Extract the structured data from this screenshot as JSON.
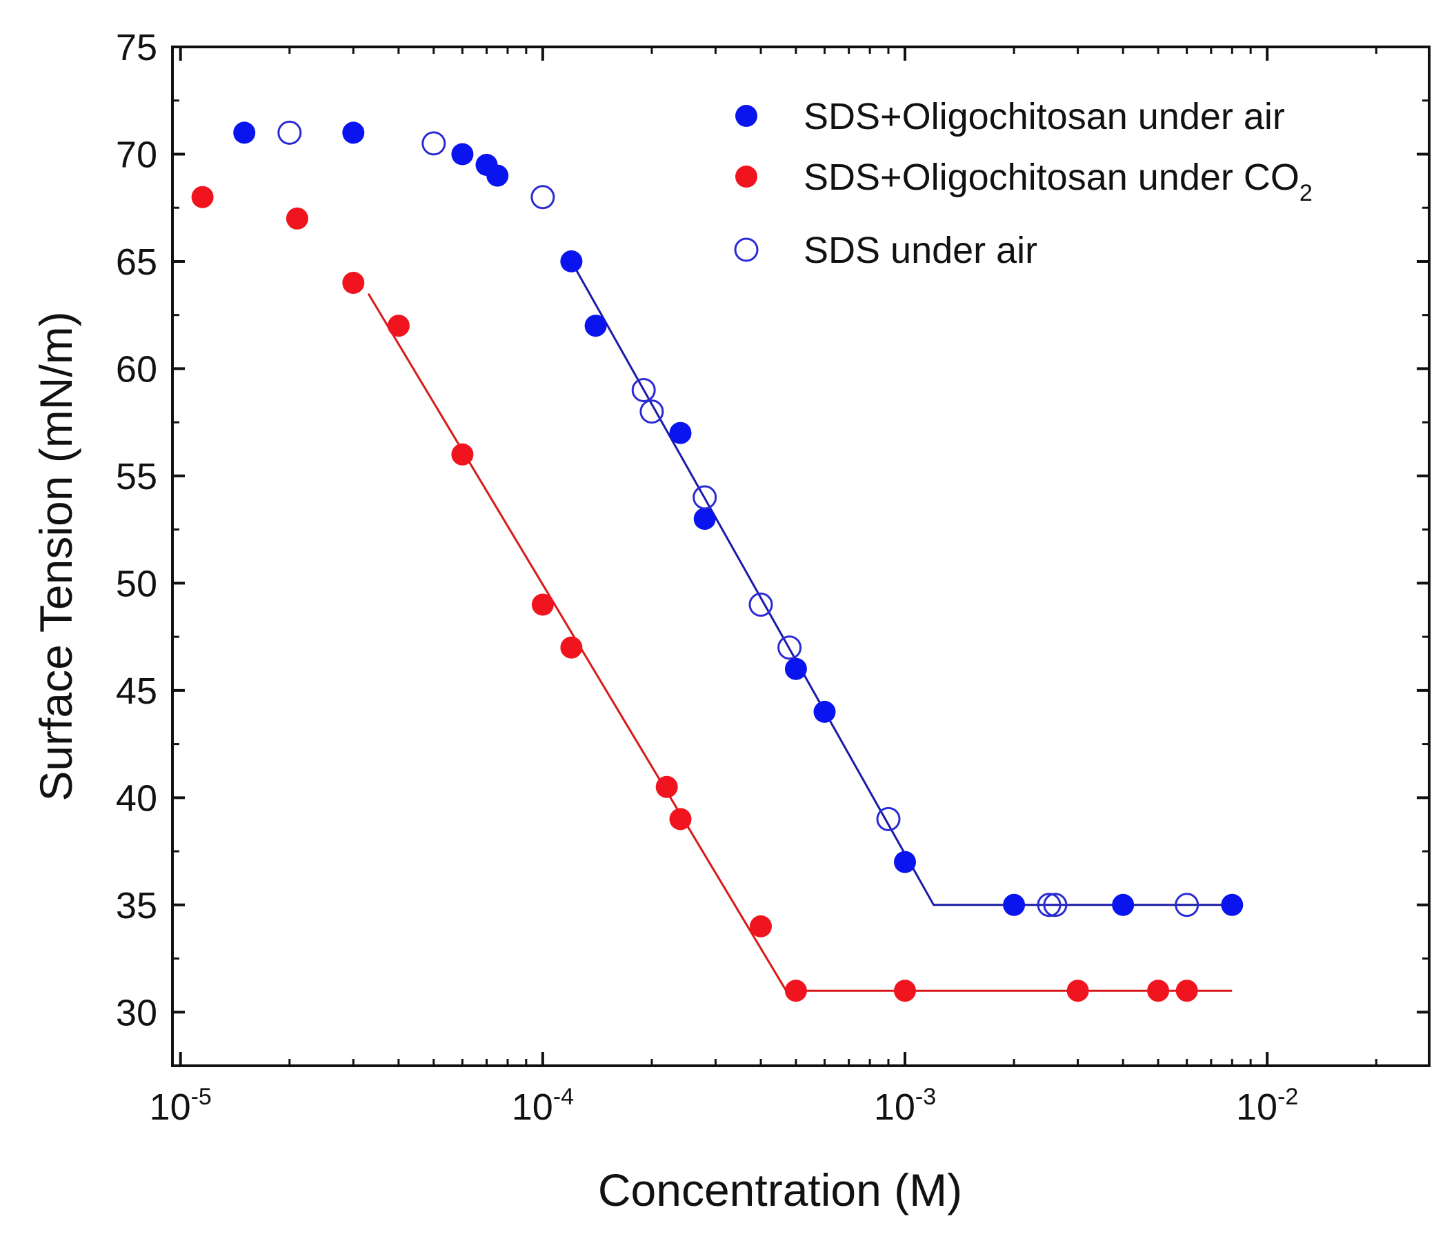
{
  "chart_data": {
    "type": "scatter",
    "title": "",
    "xlabel": "Concentration (M)",
    "ylabel": "Surface Tension (mN/m)",
    "xscale": "log",
    "xlim": [
      9.5e-06,
      0.028
    ],
    "ylim": [
      27.5,
      75
    ],
    "grid": false,
    "legend_position": "top-right",
    "x_ticks": [
      {
        "value": 1e-05,
        "base": "10",
        "exp": "-5"
      },
      {
        "value": 0.0001,
        "base": "10",
        "exp": "-4"
      },
      {
        "value": 0.001,
        "base": "10",
        "exp": "-3"
      },
      {
        "value": 0.01,
        "base": "10",
        "exp": "-2"
      }
    ],
    "y_ticks": [
      {
        "value": 30,
        "label": "30"
      },
      {
        "value": 35,
        "label": "35"
      },
      {
        "value": 40,
        "label": "40"
      },
      {
        "value": 45,
        "label": "45"
      },
      {
        "value": 50,
        "label": "50"
      },
      {
        "value": 55,
        "label": "55"
      },
      {
        "value": 60,
        "label": "60"
      },
      {
        "value": 65,
        "label": "65"
      },
      {
        "value": 70,
        "label": "70"
      },
      {
        "value": 75,
        "label": "75"
      }
    ],
    "series": [
      {
        "name": "SDS+Oligochitosan under air",
        "legend_main": "SDS+Oligochitosan under air",
        "legend_sub": "",
        "marker": "filled-circle",
        "color": "#0a14ee",
        "x": [
          1.5e-05,
          3e-05,
          6e-05,
          7e-05,
          7.5e-05,
          0.00012,
          0.00014,
          0.00024,
          0.00028,
          0.0005,
          0.0006,
          0.001,
          0.002,
          0.004,
          0.008
        ],
        "y": [
          71,
          71,
          70,
          69.5,
          69,
          65,
          62,
          57,
          53,
          46,
          44,
          37,
          35,
          35,
          35
        ]
      },
      {
        "name": "SDS+Oligochitosan under CO2",
        "legend_main": "SDS+Oligochitosan under CO",
        "legend_sub": "2",
        "marker": "filled-circle",
        "color": "#f0141e",
        "x": [
          1.15e-05,
          2.1e-05,
          3e-05,
          4e-05,
          6e-05,
          0.0001,
          0.00012,
          0.00022,
          0.00024,
          0.0004,
          0.0005,
          0.001,
          0.003,
          0.005,
          0.006
        ],
        "y": [
          68,
          67,
          64,
          62,
          56,
          49,
          47,
          40.5,
          39,
          34,
          31,
          31,
          31,
          31,
          31
        ]
      },
      {
        "name": "SDS under air",
        "legend_main": "SDS under air",
        "legend_sub": "",
        "marker": "open-circle",
        "color": "#2a2ad6",
        "x": [
          2e-05,
          5e-05,
          0.0001,
          0.00019,
          0.0002,
          0.00028,
          0.0004,
          0.00048,
          0.0009,
          0.0025,
          0.0026,
          0.006
        ],
        "y": [
          71,
          70.5,
          68,
          59,
          58,
          54,
          49,
          47,
          39,
          35,
          35,
          35
        ]
      }
    ],
    "fit_lines": [
      {
        "name": "air-fit",
        "color": "#1a1aa8",
        "x": [
          0.00012,
          0.0012,
          0.008
        ],
        "y": [
          65,
          35,
          35
        ]
      },
      {
        "name": "co2-fit",
        "color": "#d81818",
        "x": [
          3.3e-05,
          0.00047,
          0.008
        ],
        "y": [
          63.5,
          31,
          31
        ]
      }
    ]
  }
}
